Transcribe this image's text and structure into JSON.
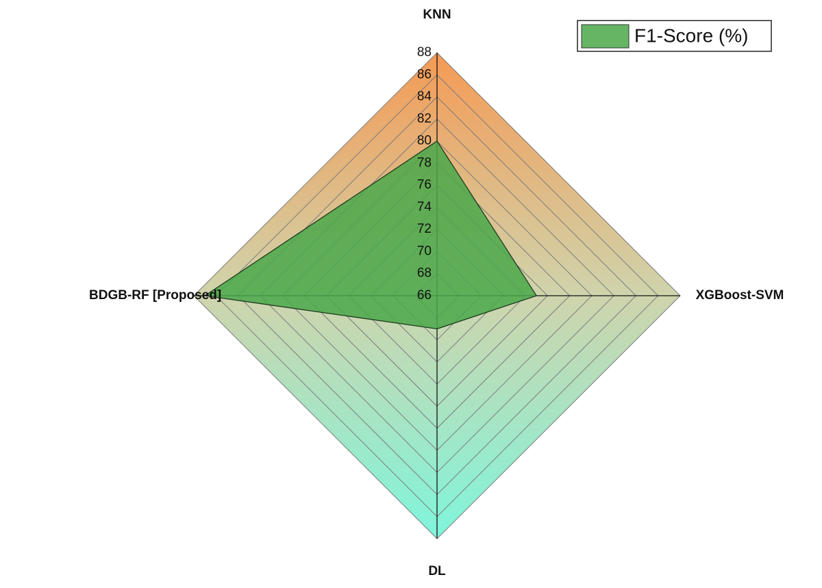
{
  "chart_data": {
    "type": "radar",
    "categories": [
      "KNN",
      "XGBoost-SVM",
      "DL",
      "BDGB-RF [Proposed]"
    ],
    "series": [
      {
        "name": "F1-Score (%)",
        "color": "#4aa84a",
        "values": [
          80,
          75,
          69,
          87
        ]
      }
    ],
    "rlim": [
      66,
      88
    ],
    "rticks": [
      66,
      68,
      70,
      72,
      74,
      76,
      78,
      80,
      82,
      84,
      86,
      88
    ],
    "grid": true,
    "legend": "top-right"
  }
}
